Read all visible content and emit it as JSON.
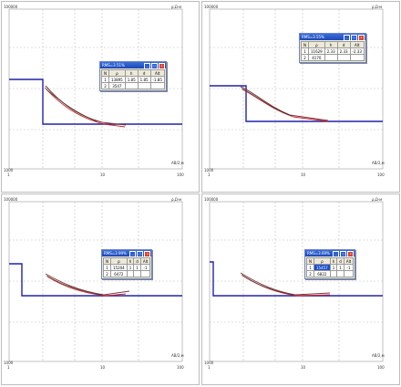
{
  "axes": {
    "y_top": "100000",
    "y_bottom": "1000",
    "x_left": "1",
    "x_mid": "10",
    "x_right": "100",
    "y_unit": "ρ,Ω·м",
    "x_unit": "AB/2,м"
  },
  "columns": [
    "N",
    "ρ",
    "h",
    "d",
    "Alt"
  ],
  "panels": [
    {
      "window_title": "RMS=3.51%",
      "rows": [
        [
          "1",
          "13895",
          "1.85",
          "1.85",
          "-1.85"
        ],
        [
          "2",
          "3547",
          "",
          "",
          ""
        ]
      ]
    },
    {
      "window_title": "RMS=3.55%",
      "rows": [
        [
          "1",
          "11629",
          "2.33",
          "2.33",
          "-2.33"
        ],
        [
          "2",
          "4170",
          "",
          "",
          ""
        ]
      ]
    },
    {
      "window_title": "RMS=3.99%",
      "rows": [
        [
          "1",
          "15204",
          "1",
          "1",
          "-1"
        ],
        [
          "2",
          "6472",
          "",
          "",
          ""
        ]
      ]
    },
    {
      "window_title": "RMS=3.69%",
      "rows": [
        [
          "1",
          "15457",
          "1",
          "1",
          "-1"
        ],
        [
          "2",
          "6822",
          "",
          "",
          ""
        ]
      ]
    }
  ],
  "colors": {
    "model_line": "#2222aa",
    "observed": "#7a3a3a",
    "calculated": "#d02020"
  }
}
